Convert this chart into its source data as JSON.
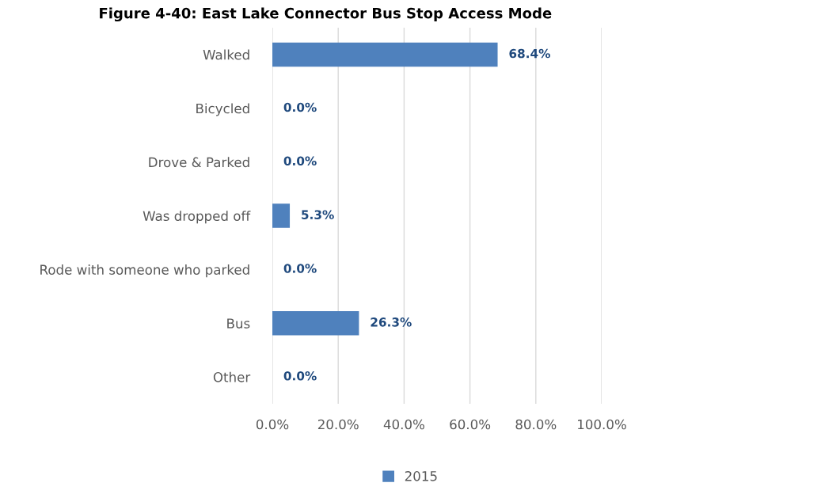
{
  "chart_data": {
    "type": "bar",
    "orientation": "horizontal",
    "title": "Figure 4-40: East Lake Connector Bus Stop Access Mode",
    "categories": [
      "Walked",
      "Bicycled",
      "Drove & Parked",
      "Was dropped off",
      "Rode with someone who parked",
      "Bus",
      "Other"
    ],
    "series": [
      {
        "name": "2015",
        "color": "#4f81bd",
        "values": [
          68.4,
          0.0,
          0.0,
          5.3,
          0.0,
          26.3,
          0.0
        ],
        "value_labels": [
          "68.4%",
          "0.0%",
          "0.0%",
          "5.3%",
          "0.0%",
          "26.3%",
          "0.0%"
        ]
      }
    ],
    "xlim": [
      0,
      100
    ],
    "xticks": [
      {
        "value": 0,
        "label": "0.0%"
      },
      {
        "value": 20,
        "label": "20.0%"
      },
      {
        "value": 40,
        "label": "40.0%"
      },
      {
        "value": 60,
        "label": "60.0%"
      },
      {
        "value": 80,
        "label": "80.0%"
      },
      {
        "value": 100,
        "label": "100.0%"
      }
    ],
    "grid": "x",
    "legend": "bottom"
  }
}
